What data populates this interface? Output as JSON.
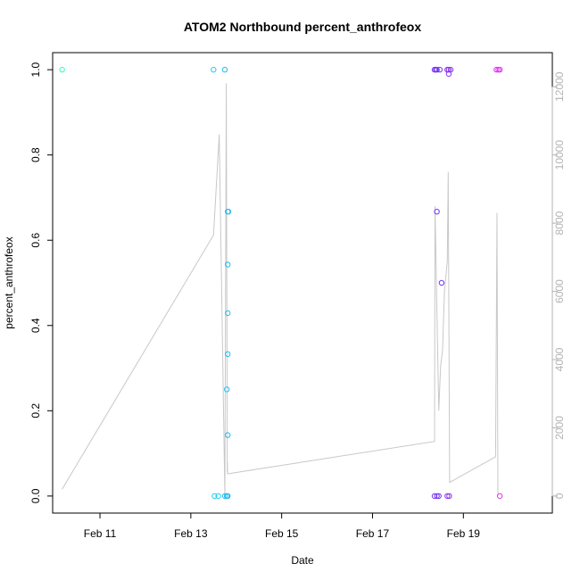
{
  "chart_data": {
    "type": "scatter",
    "title": "ATOM2 Northbound percent_anthrofeox",
    "xlabel": "Date",
    "ylabel": "percent_anthrofeox",
    "xlim": [
      "2024-02-09T23:00",
      "2024-02-20T23:00"
    ],
    "ylim": [
      -0.04,
      1.04
    ],
    "y2lim": [
      -500,
      13000
    ],
    "x_ticks": [
      {
        "date": "2024-02-11",
        "label": "Feb 11"
      },
      {
        "date": "2024-02-13",
        "label": "Feb 13"
      },
      {
        "date": "2024-02-15",
        "label": "Feb 15"
      },
      {
        "date": "2024-02-17",
        "label": "Feb 17"
      },
      {
        "date": "2024-02-19",
        "label": "Feb 19"
      }
    ],
    "y_ticks": [
      "0.0",
      "0.2",
      "0.4",
      "0.6",
      "0.8",
      "1.0"
    ],
    "y2_ticks": [
      "0",
      "2000",
      "4000",
      "6000",
      "8000",
      "10000",
      "12000"
    ],
    "points": [
      {
        "date": "2024-02-10T04:00",
        "y": 1.0,
        "color": "#33ffaa"
      },
      {
        "date": "2024-02-13T12:00",
        "y": 1.0,
        "color": "#22ccee"
      },
      {
        "date": "2024-02-13T12:30",
        "y": 0.0,
        "color": "#22ccee"
      },
      {
        "date": "2024-02-13T14:30",
        "y": 0.0,
        "color": "#22ccee"
      },
      {
        "date": "2024-02-13T18:00",
        "y": 1.0,
        "color": "#22bbee"
      },
      {
        "date": "2024-02-13T18:00",
        "y": 0.0,
        "color": "#22bbee"
      },
      {
        "date": "2024-02-13T19:00",
        "y": 0.0,
        "color": "#22bbee"
      },
      {
        "date": "2024-02-13T19:00",
        "y": 0.0,
        "color": "#22bbee"
      },
      {
        "date": "2024-02-13T19:30",
        "y": 0.0,
        "color": "#22bbee"
      },
      {
        "date": "2024-02-13T19:30",
        "y": 0.667,
        "color": "#22bbee"
      },
      {
        "date": "2024-02-13T19:50",
        "y": 0.667,
        "color": "#22bbee"
      },
      {
        "date": "2024-02-13T19:30",
        "y": 0.543,
        "color": "#22bbee"
      },
      {
        "date": "2024-02-13T19:30",
        "y": 0.429,
        "color": "#22bbee"
      },
      {
        "date": "2024-02-13T19:30",
        "y": 0.333,
        "color": "#22bbee"
      },
      {
        "date": "2024-02-13T19:00",
        "y": 0.25,
        "color": "#22bbee"
      },
      {
        "date": "2024-02-13T19:30",
        "y": 0.143,
        "color": "#22bbee"
      },
      {
        "date": "2024-02-18T08:45",
        "y": 1.0,
        "color": "#7733ee"
      },
      {
        "date": "2024-02-18T09:30",
        "y": 1.0,
        "color": "#7733ee"
      },
      {
        "date": "2024-02-18T10:00",
        "y": 1.0,
        "color": "#7733ee"
      },
      {
        "date": "2024-02-18T11:30",
        "y": 1.0,
        "color": "#7733ee"
      },
      {
        "date": "2024-02-18T08:45",
        "y": 0.0,
        "color": "#7733ee"
      },
      {
        "date": "2024-02-18T10:00",
        "y": 0.0,
        "color": "#7733ee"
      },
      {
        "date": "2024-02-18T11:00",
        "y": 0.0,
        "color": "#7733ee"
      },
      {
        "date": "2024-02-18T10:00",
        "y": 0.667,
        "color": "#7733ee"
      },
      {
        "date": "2024-02-18T12:30",
        "y": 0.5,
        "color": "#7733ee"
      },
      {
        "date": "2024-02-18T15:30",
        "y": 1.0,
        "color": "#8833ee"
      },
      {
        "date": "2024-02-18T16:15",
        "y": 1.0,
        "color": "#8833ee"
      },
      {
        "date": "2024-02-18T17:15",
        "y": 1.0,
        "color": "#8833ee"
      },
      {
        "date": "2024-02-18T16:15",
        "y": 0.99,
        "color": "#8833ee"
      },
      {
        "date": "2024-02-18T15:30",
        "y": 0.0,
        "color": "#8833ee"
      },
      {
        "date": "2024-02-18T16:30",
        "y": 0.0,
        "color": "#8833ee"
      },
      {
        "date": "2024-02-19T17:30",
        "y": 1.0,
        "color": "#dd33ee"
      },
      {
        "date": "2024-02-19T18:30",
        "y": 1.0,
        "color": "#dd33ee"
      },
      {
        "date": "2024-02-19T19:15",
        "y": 1.0,
        "color": "#dd33ee"
      },
      {
        "date": "2024-02-19T19:15",
        "y": 0.0,
        "color": "#dd33ee"
      }
    ],
    "line_series": {
      "axis": "right",
      "color": "#c8c8c8",
      "points": [
        {
          "date": "2024-02-10T04:00",
          "v": 200
        },
        {
          "date": "2024-02-13T12:00",
          "v": 7650
        },
        {
          "date": "2024-02-13T15:00",
          "v": 10600
        },
        {
          "date": "2024-02-13T18:00",
          "v": 0
        },
        {
          "date": "2024-02-13T18:45",
          "v": 12100
        },
        {
          "date": "2024-02-13T19:15",
          "v": 700
        },
        {
          "date": "2024-02-13T19:20",
          "v": 1000
        },
        {
          "date": "2024-02-13T19:25",
          "v": 650
        },
        {
          "date": "2024-02-18T08:45",
          "v": 1600
        },
        {
          "date": "2024-02-18T09:00",
          "v": 8500
        },
        {
          "date": "2024-02-18T11:00",
          "v": 2500
        },
        {
          "date": "2024-02-18T12:00",
          "v": 3800
        },
        {
          "date": "2024-02-18T13:00",
          "v": 4300
        },
        {
          "date": "2024-02-18T14:00",
          "v": 6000
        },
        {
          "date": "2024-02-18T15:30",
          "v": 6900
        },
        {
          "date": "2024-02-18T16:00",
          "v": 9500
        },
        {
          "date": "2024-02-18T16:45",
          "v": 400
        },
        {
          "date": "2024-02-19T17:00",
          "v": 1150
        },
        {
          "date": "2024-02-19T17:45",
          "v": 8300
        },
        {
          "date": "2024-02-19T18:15",
          "v": 0
        }
      ]
    },
    "grid": false,
    "legend": "none"
  }
}
